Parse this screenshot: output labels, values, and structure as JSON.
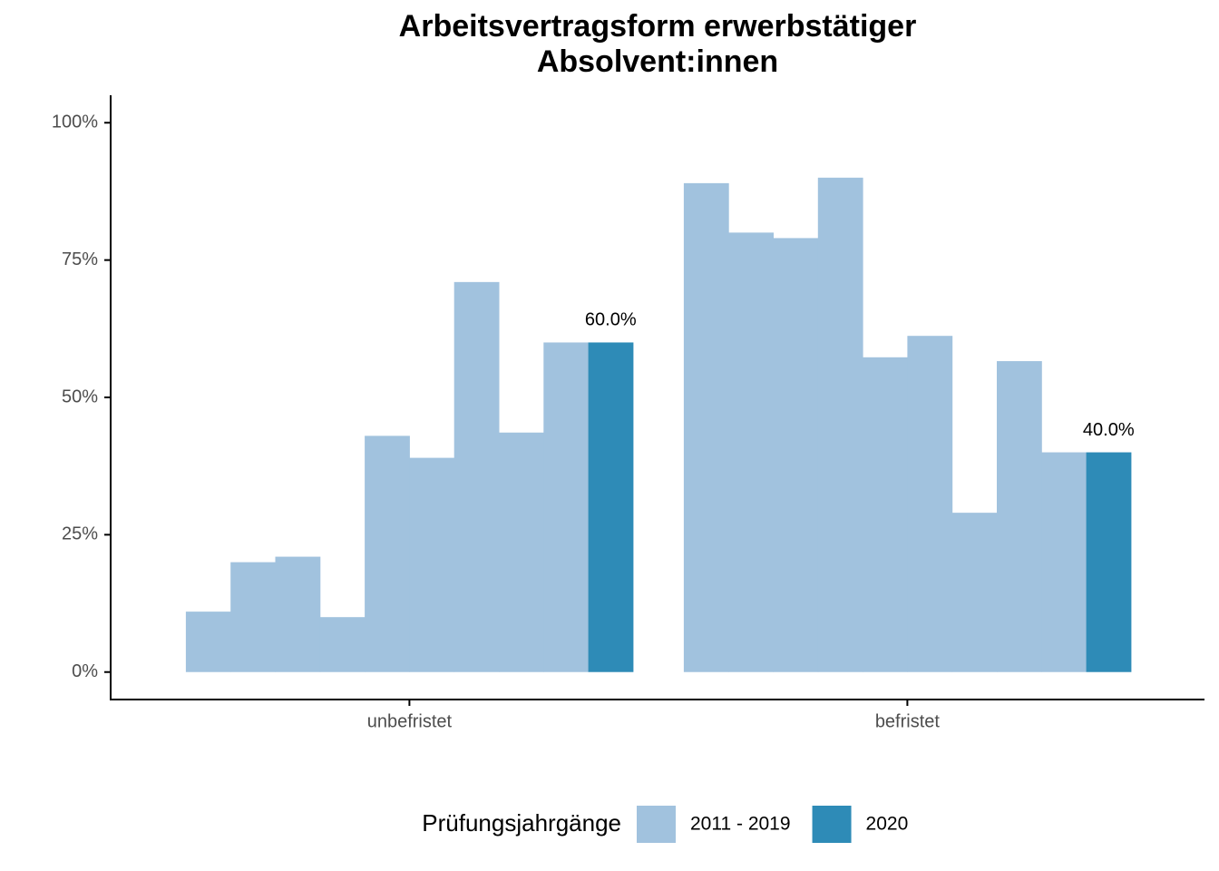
{
  "chart_data": {
    "type": "bar",
    "title": [
      "Arbeitsvertragsform erwerbstätiger",
      "Absolvent:innen"
    ],
    "categories": [
      "unbefristet",
      "befristet"
    ],
    "series": [
      {
        "name": "2011 - 2019",
        "color": "#a1c2de",
        "values": [
          [
            11,
            20,
            21,
            10,
            43,
            39,
            71,
            43.6,
            60
          ],
          [
            89,
            80,
            79,
            90,
            57.3,
            61.2,
            29,
            56.6,
            40
          ]
        ]
      },
      {
        "name": "2020",
        "color": "#2e8bb7",
        "values": [
          60,
          40
        ],
        "value_labels": [
          "60.0%",
          "40.0%"
        ]
      }
    ],
    "legend_title": "Prüfungsjahrgänge",
    "legend": "bottom",
    "ylim": [
      -5,
      105
    ],
    "yticks": [
      {
        "value": 0,
        "label": "0%"
      },
      {
        "value": 25,
        "label": "25%"
      },
      {
        "value": 50,
        "label": "50%"
      },
      {
        "value": 75,
        "label": "75%"
      },
      {
        "value": 100,
        "label": "100%"
      }
    ],
    "grid": false
  }
}
